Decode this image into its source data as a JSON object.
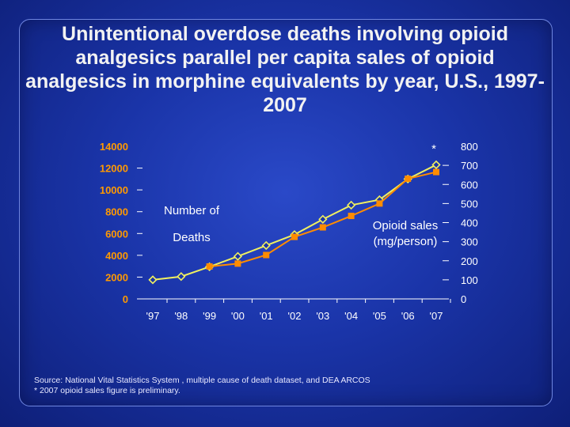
{
  "title": "Unintentional overdose deaths involving opioid analgesics parallel per capita sales of opioid analgesics in morphine equivalents by year, U.S., 1997-2007",
  "source_line1": "Source: National Vital Statistics System , multiple cause of death dataset, and DEA ARCOS",
  "source_line2": "* 2007 opioid sales figure is preliminary.",
  "colors": {
    "deaths": "#f0f060",
    "sales": "#ff8c00",
    "left_ticks": "#ff9900",
    "text": "#ffffff"
  },
  "chart_data": {
    "type": "line",
    "categories": [
      "'97",
      "'98",
      "'99",
      "'00",
      "'01",
      "'02",
      "'03",
      "'04",
      "'05",
      "'06",
      "'07"
    ],
    "y_left": {
      "label": [
        "Number of",
        "Deaths"
      ],
      "range": [
        0,
        14000
      ],
      "ticks": [
        0,
        2000,
        4000,
        6000,
        8000,
        10000,
        12000,
        14000
      ]
    },
    "y_right": {
      "label": [
        "Opioid sales",
        "(mg/person)"
      ],
      "range": [
        0,
        800
      ],
      "ticks": [
        0,
        100,
        200,
        300,
        400,
        500,
        600,
        700,
        800
      ]
    },
    "series": [
      {
        "name": "Number of Deaths",
        "axis": "left",
        "marker": "diamond",
        "values": [
          1750,
          2050,
          2950,
          3900,
          4900,
          5900,
          7300,
          8600,
          9100,
          11000,
          12300
        ]
      },
      {
        "name": "Opioid sales (mg/person)",
        "axis": "right",
        "marker": "square",
        "values": [
          null,
          null,
          170,
          185,
          230,
          325,
          375,
          435,
          500,
          630,
          665
        ]
      }
    ],
    "annotation": "*"
  }
}
